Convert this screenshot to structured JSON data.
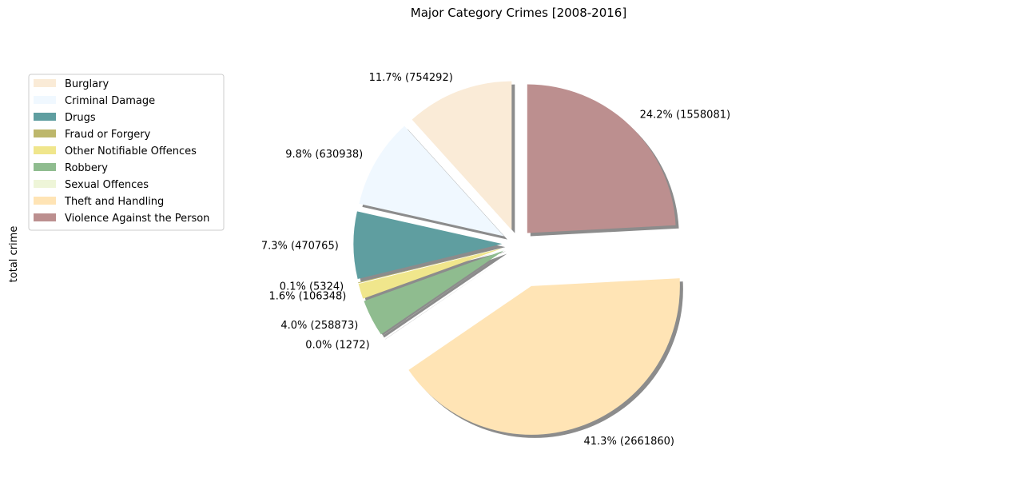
{
  "chart_data": {
    "type": "pie",
    "title": "Major Category Crimes [2008-2016]",
    "ylabel": "total crime",
    "legend_position": "upper-left",
    "shadow": true,
    "start_angle_deg": 90,
    "direction": "counterclockwise",
    "slices": [
      {
        "name": "Burglary",
        "value": 754292,
        "label": "11.7% (754292)",
        "color": "#faebd7",
        "explode": 0.1
      },
      {
        "name": "Criminal Damage",
        "value": 630938,
        "label": "9.8% (630938)",
        "color": "#f0f8ff",
        "explode": 0.1
      },
      {
        "name": "Drugs",
        "value": 470765,
        "label": "7.3% (470765)",
        "color": "#5f9ea0",
        "explode": 0.1
      },
      {
        "name": "Fraud or Forgery",
        "value": 5324,
        "label": "0.1% (5324)",
        "color": "#bdb76b",
        "explode": 0.1
      },
      {
        "name": "Other Notifiable Offences",
        "value": 106348,
        "label": "1.6% (106348)",
        "color": "#f0e68c",
        "explode": 0.1
      },
      {
        "name": "Robbery",
        "value": 258873,
        "label": "4.0% (258873)",
        "color": "#8fbc8f",
        "explode": 0.1
      },
      {
        "name": "Sexual Offences",
        "value": 1272,
        "label": "0.0% (1272)",
        "color": "#eef5d8",
        "explode": 0.1
      },
      {
        "name": "Theft and Handling",
        "value": 2661860,
        "label": "41.3% (2661860)",
        "color": "#ffe4b5",
        "explode": 0.3
      },
      {
        "name": "Violence Against the Person",
        "value": 1558081,
        "label": "24.2% (1558081)",
        "color": "#bc8f8f",
        "explode": 0.1
      }
    ]
  }
}
